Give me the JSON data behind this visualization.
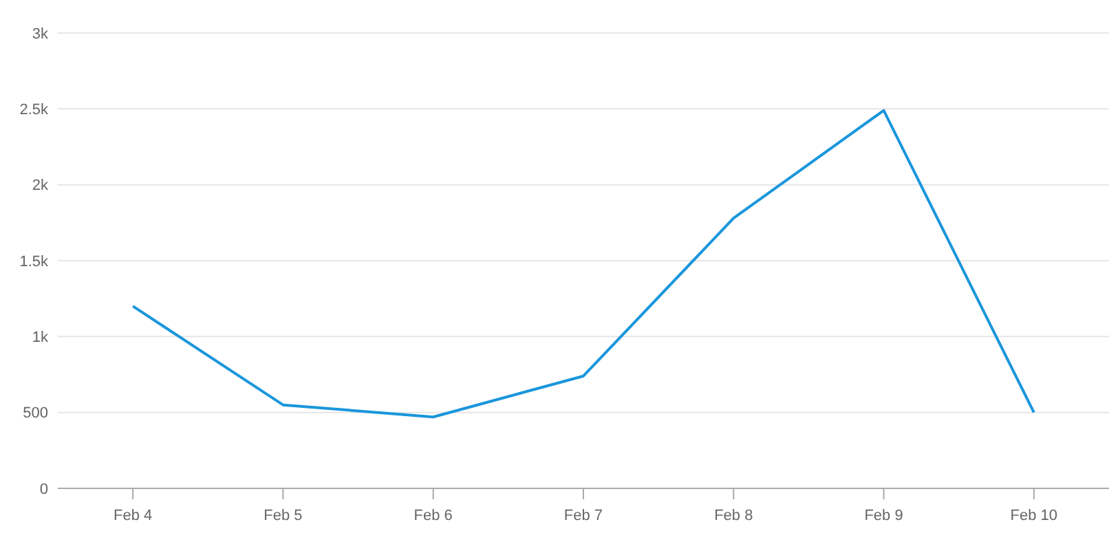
{
  "chart_data": {
    "type": "line",
    "categories": [
      "Feb 4",
      "Feb 5",
      "Feb 6",
      "Feb 7",
      "Feb 8",
      "Feb 9",
      "Feb 10"
    ],
    "series": [
      {
        "color": "#1a96dc",
        "values": [
          1200,
          550,
          470,
          740,
          1780,
          2490,
          500
        ]
      }
    ],
    "ylim": [
      0,
      3000
    ],
    "yticks": [
      0,
      500,
      {
        "value": 1000,
        "label": "1k"
      },
      {
        "value": 1500,
        "label": "1.5k"
      },
      {
        "value": 2000,
        "label": "2k"
      },
      {
        "value": 2500,
        "label": "2.5k"
      },
      {
        "value": 3000,
        "label": "3k"
      }
    ],
    "grid": "y",
    "marker": "none",
    "line_style": "solid"
  }
}
